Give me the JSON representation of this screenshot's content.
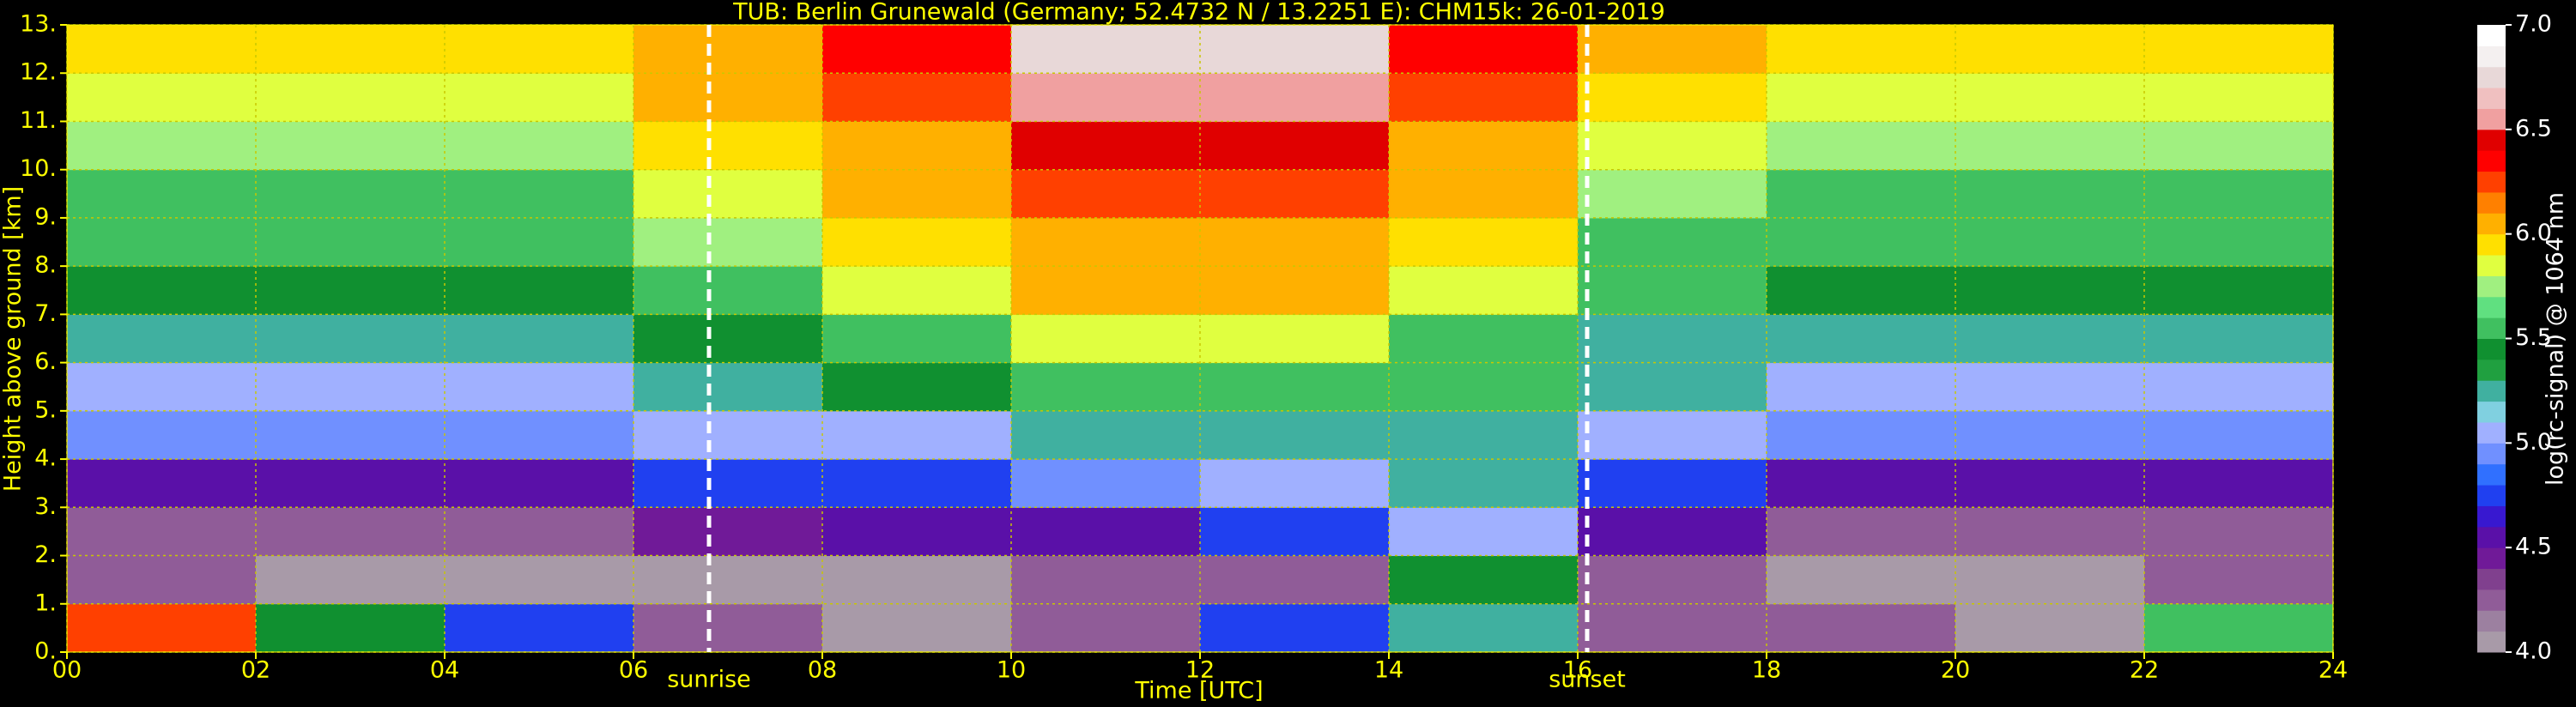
{
  "chart_data": {
    "type": "heatmap",
    "title": "TUB: Berlin Grunewald (Germany; 52.4732 N / 13.2251 E):    CHM15k: 26-01-2019",
    "xlabel": "Time [UTC]",
    "ylabel": "Height above ground [km]",
    "colorbar_label": "log(rc-signal) @ 1064 nm",
    "xlim": [
      0,
      24
    ],
    "xticks": [
      {
        "value": 0,
        "label": "00"
      },
      {
        "value": 2,
        "label": "02"
      },
      {
        "value": 4,
        "label": "04"
      },
      {
        "value": 6,
        "label": "06"
      },
      {
        "value": 8,
        "label": "08"
      },
      {
        "value": 10,
        "label": "10"
      },
      {
        "value": 12,
        "label": "12"
      },
      {
        "value": 14,
        "label": "14"
      },
      {
        "value": 16,
        "label": "16"
      },
      {
        "value": 18,
        "label": "18"
      },
      {
        "value": 20,
        "label": "20"
      },
      {
        "value": 22,
        "label": "22"
      },
      {
        "value": 24,
        "label": "24"
      }
    ],
    "ylim": [
      0,
      13
    ],
    "yticks": [
      {
        "value": 0,
        "label": "0."
      },
      {
        "value": 1,
        "label": "1."
      },
      {
        "value": 2,
        "label": "2."
      },
      {
        "value": 3,
        "label": "3."
      },
      {
        "value": 4,
        "label": "4."
      },
      {
        "value": 5,
        "label": "5."
      },
      {
        "value": 6,
        "label": "6."
      },
      {
        "value": 7,
        "label": "7."
      },
      {
        "value": 8,
        "label": "8."
      },
      {
        "value": 9,
        "label": "9."
      },
      {
        "value": 10,
        "label": "10."
      },
      {
        "value": 11,
        "label": "11."
      },
      {
        "value": 12,
        "label": "12."
      },
      {
        "value": 13,
        "label": "13."
      }
    ],
    "zlim": [
      4,
      7
    ],
    "zticks": [
      {
        "value": 4,
        "label": "4.0"
      },
      {
        "value": 4.5,
        "label": "4.5"
      },
      {
        "value": 5,
        "label": "5.0"
      },
      {
        "value": 5.5,
        "label": "5.5"
      },
      {
        "value": 6,
        "label": "6.0"
      },
      {
        "value": 6.5,
        "label": "6.5"
      },
      {
        "value": 7,
        "label": "7.0"
      }
    ],
    "colorscale": [
      "#a89aa8",
      "#9c80a0",
      "#905c98",
      "#80408e",
      "#701a98",
      "#5a10a8",
      "#3818d0",
      "#2040f0",
      "#3070ff",
      "#7090ff",
      "#a0b0ff",
      "#80d0e0",
      "#40b0a0",
      "#20a040",
      "#109030",
      "#40c060",
      "#60e080",
      "#a0f080",
      "#e0ff40",
      "#ffe000",
      "#ffb000",
      "#ff8000",
      "#ff4000",
      "#ff0000",
      "#e00000",
      "#f0a0a0",
      "#f0c0c0",
      "#e8d8d8",
      "#f4f0f0",
      "#ffffff"
    ],
    "grid": true,
    "z": [
      [
        6.2,
        5.4,
        4.8,
        4.2,
        4.1,
        4.3,
        4.8,
        5.3,
        4.2,
        4.2,
        4.1,
        5.6
      ],
      [
        4.2,
        4.1,
        4.0,
        4.0,
        4.1,
        4.2,
        4.3,
        5.4,
        4.2,
        4.0,
        4.0,
        4.2
      ],
      [
        4.3,
        4.3,
        4.3,
        4.4,
        4.5,
        4.6,
        4.7,
        5.0,
        4.5,
        4.3,
        4.3,
        4.3
      ],
      [
        4.6,
        4.6,
        4.6,
        4.7,
        4.8,
        4.9,
        5.0,
        5.2,
        4.8,
        4.6,
        4.6,
        4.6
      ],
      [
        4.9,
        4.9,
        4.9,
        5.0,
        5.1,
        5.3,
        5.3,
        5.3,
        5.0,
        4.9,
        4.9,
        4.9
      ],
      [
        5.1,
        5.1,
        5.1,
        5.2,
        5.4,
        5.5,
        5.5,
        5.5,
        5.2,
        5.1,
        5.1,
        5.1
      ],
      [
        5.2,
        5.2,
        5.3,
        5.4,
        5.6,
        5.8,
        5.8,
        5.6,
        5.3,
        5.2,
        5.2,
        5.2
      ],
      [
        5.4,
        5.4,
        5.4,
        5.6,
        5.8,
        6.0,
        6.0,
        5.8,
        5.5,
        5.4,
        5.4,
        5.4
      ],
      [
        5.5,
        5.5,
        5.5,
        5.7,
        5.9,
        6.1,
        6.1,
        5.9,
        5.6,
        5.5,
        5.5,
        5.5
      ],
      [
        5.6,
        5.6,
        5.6,
        5.8,
        6.0,
        6.2,
        6.2,
        6.0,
        5.7,
        5.6,
        5.6,
        5.6
      ],
      [
        5.7,
        5.7,
        5.7,
        5.9,
        6.1,
        6.4,
        6.4,
        6.1,
        5.8,
        5.7,
        5.7,
        5.7
      ],
      [
        5.8,
        5.8,
        5.8,
        6.0,
        6.2,
        6.6,
        6.6,
        6.2,
        5.9,
        5.8,
        5.8,
        5.8
      ],
      [
        5.9,
        5.9,
        5.9,
        6.1,
        6.3,
        6.7,
        6.7,
        6.3,
        6.0,
        5.9,
        5.9,
        5.9
      ]
    ],
    "annotations": [
      {
        "label": "sunrise",
        "x": 6.8
      },
      {
        "label": "sunset",
        "x": 16.1
      }
    ]
  }
}
